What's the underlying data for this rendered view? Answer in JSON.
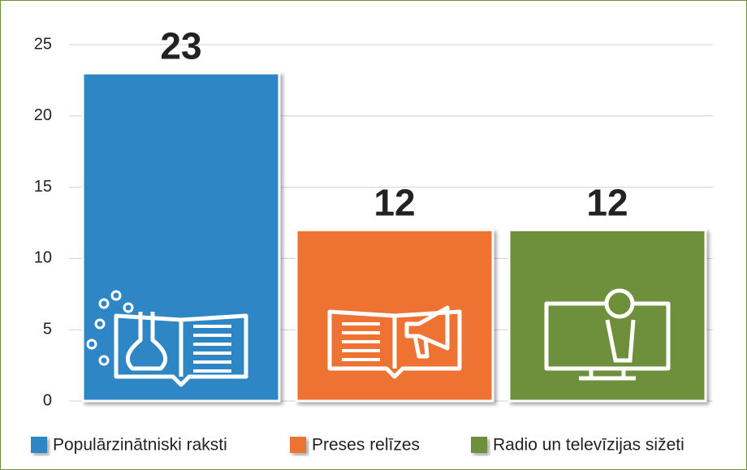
{
  "chart_data": {
    "type": "bar",
    "categories": [
      "Populārzinātniski raksti",
      "Preses relīzes",
      "Radio un televīzijas sižeti"
    ],
    "values": [
      23,
      12,
      12
    ],
    "colors": [
      "#2e86c4",
      "#ee7232",
      "#6e8f3a"
    ],
    "ylim": [
      0,
      25
    ],
    "yticks": [
      0,
      5,
      10,
      15,
      20,
      25
    ],
    "grid": true,
    "legend": "bottom"
  }
}
